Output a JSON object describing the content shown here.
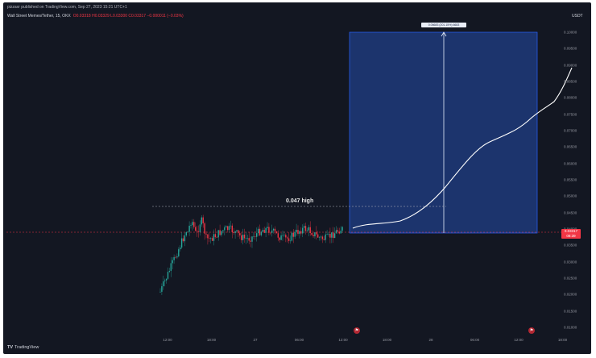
{
  "header": {
    "published_line": "pizzaxr published on TradingView.com, Sep 27, 2023 15:21 UTC+1",
    "symbol": "Wall Street Memes/Tether, 15, OKX",
    "ohlc": "O0.03318 H0.03329 L0.03300 C0.03317 −0.000011 (−0.03%)"
  },
  "price_axis": {
    "currency": "USDT",
    "ticks": [
      "0.10000",
      "0.09500",
      "0.09000",
      "0.08500",
      "0.08000",
      "0.07500",
      "0.07000",
      "0.06500",
      "0.06000",
      "0.05500",
      "0.05000",
      "0.04500",
      "0.04000",
      "0.03500",
      "0.03000",
      "0.02500",
      "0.02000",
      "0.01500",
      "0.01000"
    ],
    "current_price": "0.03317",
    "current_time": "08:39"
  },
  "time_axis": {
    "ticks": [
      "12:00",
      "18:00",
      "27",
      "06:00",
      "12:00",
      "18:00",
      "28",
      "06:00",
      "12:00",
      "18:00"
    ]
  },
  "annotations": {
    "high_label": "0.047 high",
    "range_label": "0.06683 (201.15%) 6683"
  },
  "colors": {
    "background": "#131722",
    "bull": "#26a69a",
    "bear": "#f23645",
    "range_box": "#1e3a7a",
    "range_border": "#2962ff"
  },
  "footer": {
    "logo": "TradingView"
  },
  "icons": [
    "event-flag-icon",
    "tradingview-logo-icon"
  ]
}
